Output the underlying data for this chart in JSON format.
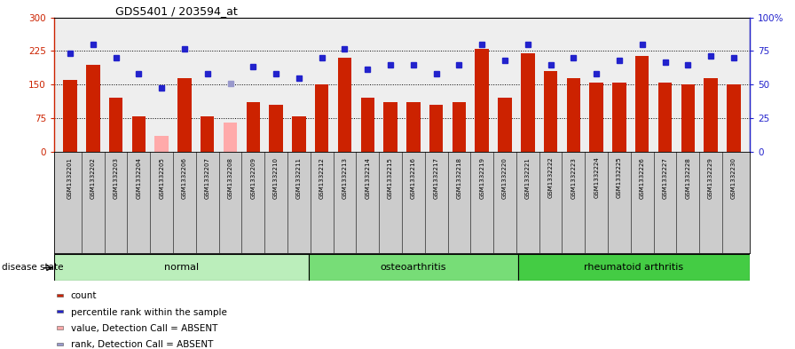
{
  "title": "GDS5401 / 203594_at",
  "samples": [
    "GSM1332201",
    "GSM1332202",
    "GSM1332203",
    "GSM1332204",
    "GSM1332205",
    "GSM1332206",
    "GSM1332207",
    "GSM1332208",
    "GSM1332209",
    "GSM1332210",
    "GSM1332211",
    "GSM1332212",
    "GSM1332213",
    "GSM1332214",
    "GSM1332215",
    "GSM1332216",
    "GSM1332217",
    "GSM1332218",
    "GSM1332219",
    "GSM1332220",
    "GSM1332221",
    "GSM1332222",
    "GSM1332223",
    "GSM1332224",
    "GSM1332225",
    "GSM1332226",
    "GSM1332227",
    "GSM1332228",
    "GSM1332229",
    "GSM1332230"
  ],
  "bar_values": [
    160,
    195,
    120,
    80,
    35,
    165,
    80,
    65,
    110,
    105,
    80,
    150,
    210,
    120,
    110,
    110,
    105,
    110,
    230,
    120,
    220,
    180,
    165,
    155,
    155,
    215,
    155,
    150,
    165,
    150
  ],
  "bar_absent": [
    false,
    false,
    false,
    false,
    true,
    false,
    false,
    true,
    false,
    false,
    false,
    false,
    false,
    false,
    false,
    false,
    false,
    false,
    false,
    false,
    false,
    false,
    false,
    false,
    false,
    false,
    false,
    false,
    false,
    false
  ],
  "dot_values_left": [
    220,
    240,
    210,
    175,
    143,
    230,
    175,
    152,
    190,
    175,
    165,
    210,
    230,
    185,
    195,
    195,
    175,
    195,
    240,
    205,
    240,
    195,
    210,
    175,
    205,
    240,
    200,
    195,
    215,
    210
  ],
  "dot_absent": [
    false,
    false,
    false,
    false,
    false,
    false,
    false,
    true,
    false,
    false,
    false,
    false,
    false,
    false,
    false,
    false,
    false,
    false,
    false,
    false,
    false,
    false,
    false,
    false,
    false,
    false,
    false,
    false,
    false,
    false
  ],
  "bar_color_normal": "#cc2200",
  "bar_color_absent": "#ffaaaa",
  "dot_color_normal": "#2222cc",
  "dot_color_absent": "#9999cc",
  "ylim_left": [
    0,
    300
  ],
  "ylim_right": [
    0,
    100
  ],
  "yticks_left": [
    0,
    75,
    150,
    225,
    300
  ],
  "yticks_right": [
    0,
    25,
    50,
    75,
    100
  ],
  "groups": [
    {
      "label": "normal",
      "start": 0,
      "end": 11,
      "color": "#bbeebb"
    },
    {
      "label": "osteoarthritis",
      "start": 11,
      "end": 20,
      "color": "#77dd77"
    },
    {
      "label": "rheumatoid arthritis",
      "start": 20,
      "end": 30,
      "color": "#44cc44"
    }
  ],
  "disease_state_label": "disease state",
  "hlines": [
    75,
    150,
    225
  ],
  "legend_items": [
    {
      "label": "count",
      "color": "#cc2200"
    },
    {
      "label": "percentile rank within the sample",
      "color": "#2222cc"
    },
    {
      "label": "value, Detection Call = ABSENT",
      "color": "#ffaaaa"
    },
    {
      "label": "rank, Detection Call = ABSENT",
      "color": "#9999cc"
    }
  ],
  "plot_bg": "#eeeeee",
  "fig_bg": "#ffffff",
  "tick_label_bg": "#cccccc"
}
